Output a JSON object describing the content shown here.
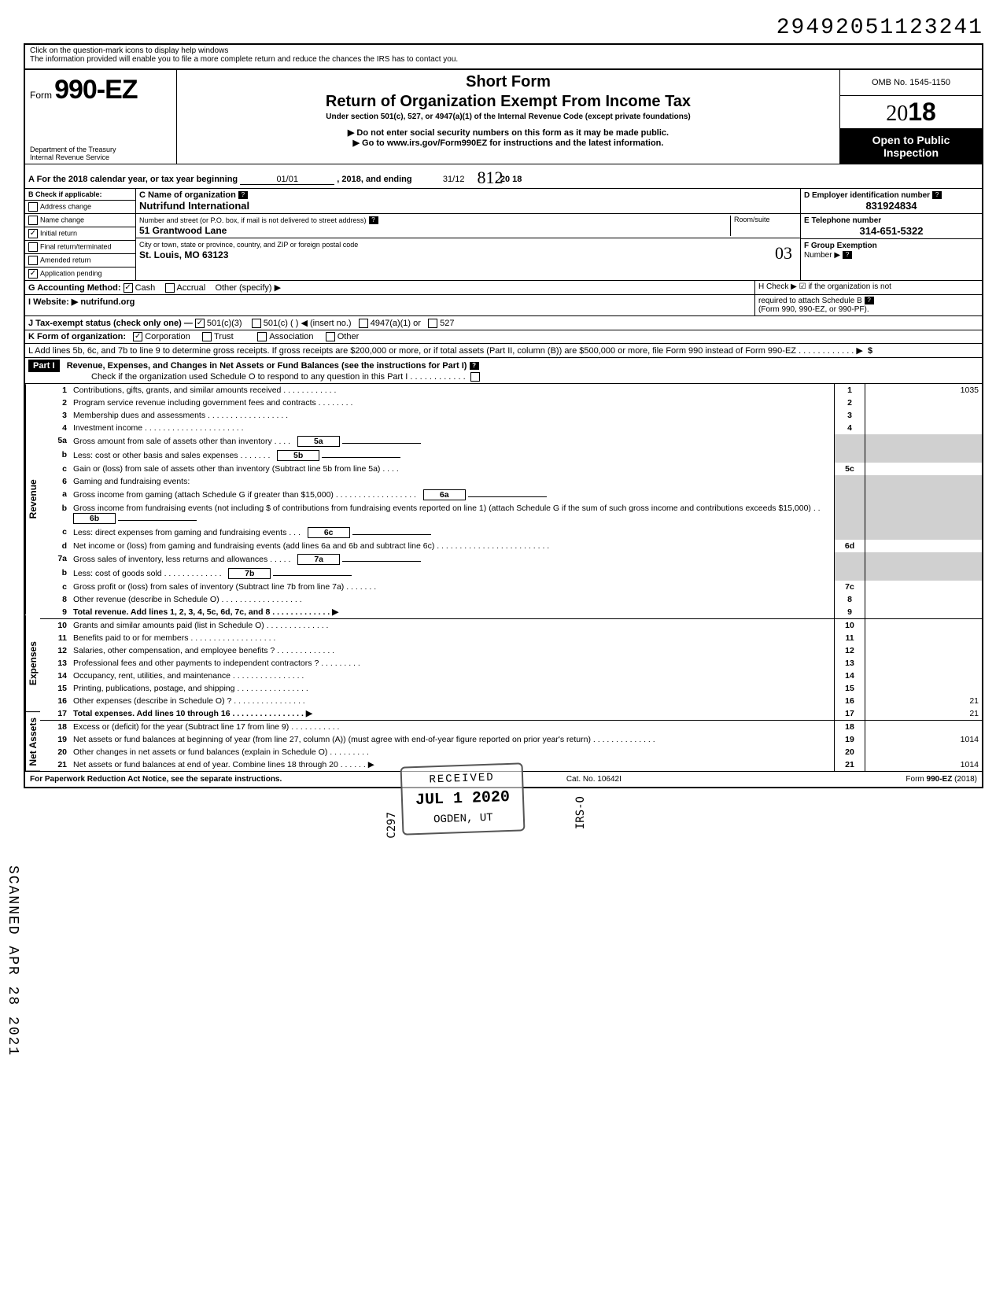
{
  "doc_number": "29492051123241",
  "help_line1": "Click on the question-mark icons to display help windows",
  "help_line2": "The information provided will enable you to file a more complete return and reduce the chances the IRS has to contact you.",
  "form_prefix": "Form",
  "form_number": "990-EZ",
  "dept1": "Department of the Treasury",
  "dept2": "Internal Revenue Service",
  "short_form": "Short Form",
  "return_title": "Return of Organization Exempt From Income Tax",
  "under_section": "Under section 501(c), 527, or 4947(a)(1) of the Internal Revenue Code (except private foundations)",
  "do_not_enter": "▶ Do not enter social security numbers on this form as it may be made public.",
  "go_to": "▶ Go to www.irs.gov/Form990EZ for instructions and the latest information.",
  "omb": "OMB No. 1545-1150",
  "year_prefix": "20",
  "year_bold": "18",
  "open_public1": "Open to Public",
  "open_public2": "Inspection",
  "line_a_pre": "A For the 2018 calendar year, or tax year beginning",
  "line_a_begin": "01/01",
  "line_a_mid": ", 2018, and ending",
  "line_a_end": "31/12",
  "line_a_year": ", 20   18",
  "b_label": "B  Check if applicable:",
  "b_items": [
    "Address change",
    "Name change",
    "Initial return",
    "Final return/terminated",
    "Amended return",
    "Application pending"
  ],
  "b_checked": [
    false,
    false,
    true,
    false,
    false,
    true
  ],
  "c_label": "C  Name of organization",
  "org_name": "Nutrifund International",
  "street_label": "Number and street (or P.O. box, if mail is not delivered to street address)",
  "room_label": "Room/suite",
  "street": "51 Grantwood Lane",
  "city_label": "City or town, state or province, country, and ZIP or foreign postal code",
  "city": "St. Louis, MO 63123",
  "d_label": "D Employer identification number",
  "ein": "831924834",
  "e_label": "E  Telephone number",
  "phone": "314-651-5322",
  "f_label": "F  Group Exemption",
  "f_label2": "Number ▶",
  "g_label": "G  Accounting Method:",
  "g_cash": "Cash",
  "g_accrual": "Accrual",
  "g_other": "Other (specify) ▶",
  "i_label": "I  Website: ▶",
  "website": "nutrifund.org",
  "h_label": "H  Check ▶ ☑ if the organization is not",
  "h_label2": "required to attach Schedule B",
  "h_label3": "(Form 990, 990-EZ, or 990-PF).",
  "j_label": "J  Tax-exempt status (check only one) —",
  "j_501c3": "501(c)(3)",
  "j_501c": "501(c) (          ) ◀ (insert no.)",
  "j_4947": "4947(a)(1) or",
  "j_527": "527",
  "k_label": "K  Form of organization:",
  "k_corp": "Corporation",
  "k_trust": "Trust",
  "k_assoc": "Association",
  "k_other": "Other",
  "l_text": "L  Add lines 5b, 6c, and 7b to line 9 to determine gross receipts. If gross receipts are $200,000 or more, or if total assets (Part II, column (B)) are $500,000 or more, file Form 990 instead of Form 990-EZ .   .   .   .   .   .   .   .   .   .   .   .   ▶",
  "part1_label": "Part I",
  "part1_title": "Revenue, Expenses, and Changes in Net Assets or Fund Balances (see the instructions for Part I)",
  "part1_check": "Check if the organization used Schedule O to respond to any question in this Part I .  .  .  .  .  .  .  .  .  .  .  .",
  "side_revenue": "Revenue",
  "side_expenses": "Expenses",
  "side_netassets": "Net Assets",
  "scanned_text": "SCANNED APR 28 2021",
  "lines": {
    "1": {
      "n": "1",
      "t": "Contributions, gifts, grants, and similar amounts received .   .   .   .   .   .   .   .   .   .   .   .",
      "box": "1",
      "amt": "1035"
    },
    "2": {
      "n": "2",
      "t": "Program service revenue including government fees and contracts   .   .   .   .   .   .   .   .",
      "box": "2",
      "amt": ""
    },
    "3": {
      "n": "3",
      "t": "Membership dues and assessments .   .   .   .   .   .   .   .   .   .   .   .   .   .   .   .   .   .",
      "box": "3",
      "amt": ""
    },
    "4": {
      "n": "4",
      "t": "Investment income   .   .   .   .   .   .   .   .   .   .   .   .   .   .   .   .   .   .   .   .   .   .",
      "box": "4",
      "amt": ""
    },
    "5a": {
      "n": "5a",
      "t": "Gross amount from sale of assets other than inventory   .   .   .   .",
      "ibox": "5a"
    },
    "5b": {
      "n": "b",
      "t": "Less: cost or other basis and sales expenses .   .   .   .   .   .   .",
      "ibox": "5b"
    },
    "5c": {
      "n": "c",
      "t": "Gain or (loss) from sale of assets other than inventory (Subtract line 5b from line 5a)  .   .   .   .",
      "box": "5c",
      "amt": ""
    },
    "6": {
      "n": "6",
      "t": "Gaming and fundraising events:"
    },
    "6a": {
      "n": "a",
      "t": "Gross income from gaming (attach Schedule G if greater than $15,000) .   .   .   .   .   .   .   .   .   .   .   .   .   .   .   .   .   .",
      "ibox": "6a"
    },
    "6b": {
      "n": "b",
      "t": "Gross income from fundraising events (not including  $                 of contributions from fundraising events reported on line 1) (attach Schedule G if the sum of such gross income and contributions exceeds $15,000) .   .",
      "ibox": "6b"
    },
    "6c": {
      "n": "c",
      "t": "Less: direct expenses from gaming and fundraising events   .   .   .",
      "ibox": "6c"
    },
    "6d": {
      "n": "d",
      "t": "Net income or (loss) from gaming and fundraising events (add lines 6a and 6b and subtract line 6c)   .   .   .   .   .   .   .   .   .   .   .   .   .   .   .   .   .   .   .   .   .   .   .   .   .",
      "box": "6d",
      "amt": ""
    },
    "7a": {
      "n": "7a",
      "t": "Gross sales of inventory, less returns and allowances  .   .   .   .   .",
      "ibox": "7a"
    },
    "7b": {
      "n": "b",
      "t": "Less: cost of goods sold   .   .   .   .   .   .   .   .   .   .   .   .   .",
      "ibox": "7b"
    },
    "7c": {
      "n": "c",
      "t": "Gross profit or (loss) from sales of inventory (Subtract line 7b from line 7a)  .   .   .   .   .   .   .",
      "box": "7c",
      "amt": ""
    },
    "8": {
      "n": "8",
      "t": "Other revenue (describe in Schedule O) .   .   .   .   .   .   .   .   .   .   .   .   .   .   .   .   .   .",
      "box": "8",
      "amt": ""
    },
    "9": {
      "n": "9",
      "t": "Total revenue. Add lines 1, 2, 3, 4, 5c, 6d, 7c, and 8   .   .   .   .   .   .   .   .   .   .   .   .   .   ▶",
      "box": "9",
      "amt": "",
      "bold": true
    },
    "10": {
      "n": "10",
      "t": "Grants and similar amounts paid (list in Schedule O)   .   .   .   .   .   .   .   .   .   .   .   .   .   .",
      "box": "10",
      "amt": ""
    },
    "11": {
      "n": "11",
      "t": "Benefits paid to or for members   .   .   .   .   .   .   .   .   .   .   .   .   .   .   .   .   .   .   .",
      "box": "11",
      "amt": ""
    },
    "12": {
      "n": "12",
      "t": "Salaries, other compensation, and employee benefits ?   .   .   .   .   .   .   .   .   .   .   .   .   .",
      "box": "12",
      "amt": ""
    },
    "13": {
      "n": "13",
      "t": "Professional fees and other payments to independent contractors ?  .   .   .   .   .   .   .   .   .",
      "box": "13",
      "amt": ""
    },
    "14": {
      "n": "14",
      "t": "Occupancy, rent, utilities, and maintenance   .   .   .   .   .   .   .   .   .   .   .   .   .   .   .   .",
      "box": "14",
      "amt": ""
    },
    "15": {
      "n": "15",
      "t": "Printing, publications, postage, and shipping .   .   .   .   .   .   .   .   .   .   .   .   .   .   .   .",
      "box": "15",
      "amt": ""
    },
    "16": {
      "n": "16",
      "t": "Other expenses (describe in Schedule O) ?   .   .   .   .   .   .   .   .   .   .   .   .   .   .   .   .",
      "box": "16",
      "amt": "21"
    },
    "17": {
      "n": "17",
      "t": "Total expenses. Add lines 10 through 16   .   .   .   .   .   .   .   .   .   .   .   .   .   .   .   .   ▶",
      "box": "17",
      "amt": "21",
      "bold": true
    },
    "18": {
      "n": "18",
      "t": "Excess or (deficit) for the year (Subtract line 17 from line 9)   .   .   .   .   .   .   .   .   .   .   .",
      "box": "18",
      "amt": ""
    },
    "19": {
      "n": "19",
      "t": "Net assets or fund balances at beginning of year (from line 27, column (A)) (must agree with end-of-year figure reported on prior year's return)   .   .   .   .   .   .   .   .   .   .   .   .   .   .",
      "box": "19",
      "amt": "1014"
    },
    "20": {
      "n": "20",
      "t": "Other changes in net assets or fund balances (explain in Schedule O) .   .   .   .   .   .   .   .   .",
      "box": "20",
      "amt": ""
    },
    "21": {
      "n": "21",
      "t": "Net assets or fund balances at end of year. Combine lines 18 through 20   .   .   .   .   .   .   ▶",
      "box": "21",
      "amt": "1014"
    }
  },
  "footer_left": "For Paperwork Reduction Act Notice, see the separate instructions.",
  "footer_mid": "Cat. No. 10642I",
  "footer_right": "Form 990-EZ (2018)",
  "stamp_received": "RECEIVED",
  "stamp_date": "JUL 1   2020",
  "stamp_ogden": "OGDEN, UT",
  "stamp_c297": "C297",
  "stamp_irs": "IRS-O",
  "hand_812": "812",
  "hand_03": "03"
}
